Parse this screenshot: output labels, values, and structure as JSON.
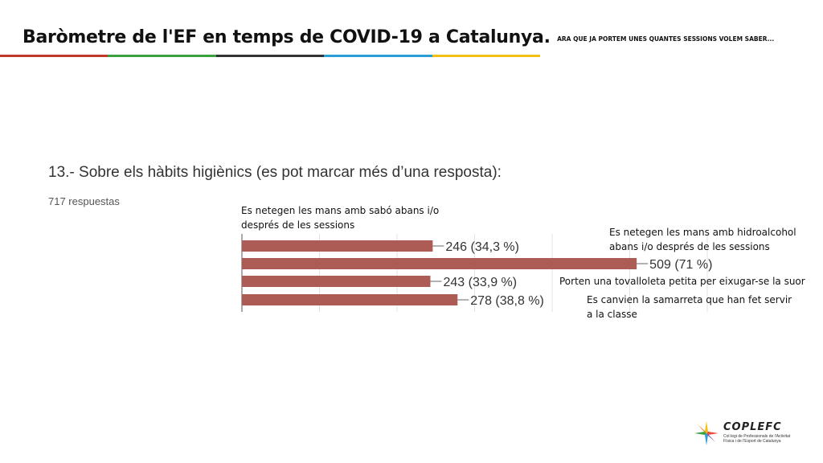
{
  "header": {
    "title": "Baròmetre de l'EF en temps de COVID-19 a Catalunya.",
    "subtitle": "ARA QUE JA PORTEM UNES QUANTES SESSIONS VOLEM SABER...",
    "stripe_colors": [
      "#c0392b",
      "#3aa040",
      "#333333",
      "#2a9fd6",
      "#f2c014"
    ]
  },
  "question": "13.- Sobre els hàbits higiènics (es pot marcar més d’una resposta):",
  "responses": "717 respuestas",
  "chart_data": {
    "type": "bar",
    "orientation": "horizontal",
    "categories": [
      "Es netegen les mans amb sabó abans i/o després de les sessions",
      "Es netegen les mans amb hidroalcohol abans i/o després de les sessions",
      "Porten una tovalloleta petita per eixugar-se la suor",
      "Es canvien la samarreta que han fet servir a la classe"
    ],
    "values": [
      246,
      509,
      243,
      278
    ],
    "labels": [
      "246 (34,3 %)",
      "509 (71 %)",
      "243 (33,9 %)",
      "278 (38,8 %)"
    ],
    "xlim": [
      0,
      600
    ],
    "bar_color": "#ad5c55",
    "grid": true
  },
  "annotations": [
    {
      "lines": [
        "Es netegen les mans amb sabó abans i/o",
        "després de les sessions"
      ]
    },
    {
      "lines": [
        "Es netegen les mans amb hidroalcohol",
        "abans i/o després de les sessions"
      ]
    },
    {
      "lines": [
        "Porten una tovalloleta petita per eixugar-se la suor"
      ]
    },
    {
      "lines": [
        "Es canvien la samarreta que han fet servir",
        "a la classe"
      ]
    }
  ],
  "logo": {
    "name": "COPLEFC",
    "subtitle_lines": [
      "Col·legi de Professionals de l'Activitat",
      "Física i de l'Esport de Catalunya"
    ]
  }
}
